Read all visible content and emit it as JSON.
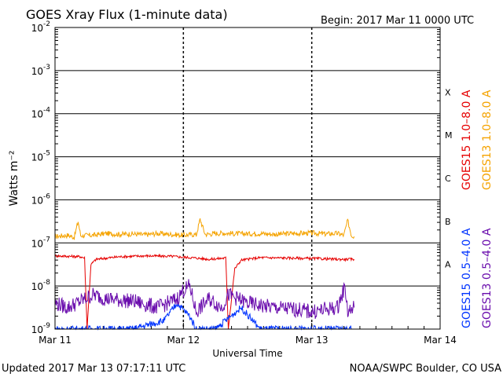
{
  "header": {
    "title": "GOES Xray Flux (1-minute data)",
    "begin_label": "Begin:  2017 Mar 11 0000 UTC"
  },
  "footer": {
    "updated": "Updated 2017 Mar 13 07:17:11 UTC",
    "credit": "NOAA/SWPC Boulder, CO USA"
  },
  "colors": {
    "goes15_long": "#e60000",
    "goes13_long": "#f5a300",
    "goes15_short": "#0033ff",
    "goes13_short": "#6a0dad"
  },
  "chart_data": {
    "type": "line",
    "title": "GOES Xray Flux (1-minute data)",
    "xlabel": "Universal Time",
    "ylabel": "Watts m⁻²",
    "y_scale": "log",
    "ylim": [
      1e-09,
      0.01
    ],
    "xlim": [
      0,
      3
    ],
    "x_ticks": [
      {
        "value": 0,
        "label": "Mar 11"
      },
      {
        "value": 1,
        "label": "Mar 12"
      },
      {
        "value": 2,
        "label": "Mar 13"
      },
      {
        "value": 3,
        "label": "Mar 14"
      }
    ],
    "y_ticks": [
      {
        "value": -9,
        "base": "10",
        "exp": "-9"
      },
      {
        "value": -8,
        "base": "10",
        "exp": "-8"
      },
      {
        "value": -7,
        "base": "10",
        "exp": "-7"
      },
      {
        "value": -6,
        "base": "10",
        "exp": "-6"
      },
      {
        "value": -5,
        "base": "10",
        "exp": "-5"
      },
      {
        "value": -4,
        "base": "10",
        "exp": "-4"
      },
      {
        "value": -3,
        "base": "10",
        "exp": "-3"
      },
      {
        "value": -2,
        "base": "10",
        "exp": "-2"
      }
    ],
    "flare_classes": [
      {
        "label": "X",
        "exponent": -3.5
      },
      {
        "label": "M",
        "exponent": -4.5
      },
      {
        "label": "C",
        "exponent": -5.5
      },
      {
        "label": "B",
        "exponent": -6.5
      },
      {
        "label": "A",
        "exponent": -7.5
      }
    ],
    "legend_right": [
      {
        "label": "GOES15 1.0–8.0 A",
        "series": "goes15_long"
      },
      {
        "label": "GOES13 1.0–8.0 A",
        "series": "goes13_long"
      }
    ],
    "legend_left": [
      {
        "label": "GOES15 0.5–4.0 A",
        "series": "goes15_short"
      },
      {
        "label": "GOES13 0.5–4.0 A",
        "series": "goes13_short"
      }
    ],
    "series": [
      {
        "id": "goes13_long",
        "color": "#f5a300",
        "points": [
          [
            0.0,
            -6.85
          ],
          [
            0.1,
            -6.82
          ],
          [
            0.15,
            -6.87
          ],
          [
            0.18,
            -6.5
          ],
          [
            0.2,
            -6.83
          ],
          [
            0.3,
            -6.82
          ],
          [
            0.4,
            -6.78
          ],
          [
            0.5,
            -6.8
          ],
          [
            0.6,
            -6.79
          ],
          [
            0.7,
            -6.81
          ],
          [
            0.8,
            -6.78
          ],
          [
            0.9,
            -6.8
          ],
          [
            1.0,
            -6.82
          ],
          [
            1.08,
            -6.8
          ],
          [
            1.1,
            -6.82
          ],
          [
            1.13,
            -6.45
          ],
          [
            1.17,
            -6.8
          ],
          [
            1.3,
            -6.77
          ],
          [
            1.45,
            -6.79
          ],
          [
            1.6,
            -6.78
          ],
          [
            1.72,
            -6.8
          ],
          [
            1.85,
            -6.78
          ],
          [
            2.0,
            -6.77
          ],
          [
            2.1,
            -6.79
          ],
          [
            2.2,
            -6.78
          ],
          [
            2.25,
            -6.82
          ],
          [
            2.28,
            -6.48
          ],
          [
            2.31,
            -6.83
          ],
          [
            2.33,
            -6.85
          ]
        ]
      },
      {
        "id": "goes15_long",
        "color": "#e60000",
        "points": [
          [
            0.0,
            -7.3
          ],
          [
            0.1,
            -7.31
          ],
          [
            0.2,
            -7.32
          ],
          [
            0.23,
            -7.35
          ],
          [
            0.25,
            -8.98
          ],
          [
            0.28,
            -7.5
          ],
          [
            0.32,
            -7.38
          ],
          [
            0.5,
            -7.32
          ],
          [
            0.7,
            -7.3
          ],
          [
            0.9,
            -7.31
          ],
          [
            1.0,
            -7.33
          ],
          [
            1.1,
            -7.35
          ],
          [
            1.2,
            -7.38
          ],
          [
            1.33,
            -7.35
          ],
          [
            1.35,
            -8.99
          ],
          [
            1.4,
            -7.6
          ],
          [
            1.45,
            -7.4
          ],
          [
            1.6,
            -7.34
          ],
          [
            1.8,
            -7.35
          ],
          [
            2.0,
            -7.36
          ],
          [
            2.2,
            -7.38
          ],
          [
            2.33,
            -7.38
          ]
        ]
      },
      {
        "id": "goes13_short",
        "color": "#6a0dad",
        "points": [
          [
            0.0,
            -8.4
          ],
          [
            0.1,
            -8.5
          ],
          [
            0.3,
            -8.2
          ],
          [
            0.4,
            -8.3
          ],
          [
            0.6,
            -8.35
          ],
          [
            0.8,
            -8.5
          ],
          [
            0.95,
            -8.3
          ],
          [
            1.0,
            -8.1
          ],
          [
            1.05,
            -8.0
          ],
          [
            1.1,
            -8.6
          ],
          [
            1.2,
            -8.3
          ],
          [
            1.3,
            -8.5
          ],
          [
            1.35,
            -8.2
          ],
          [
            1.5,
            -8.4
          ],
          [
            1.7,
            -8.5
          ],
          [
            1.9,
            -8.55
          ],
          [
            2.0,
            -8.6
          ],
          [
            2.1,
            -8.55
          ],
          [
            2.2,
            -8.5
          ],
          [
            2.26,
            -8.0
          ],
          [
            2.28,
            -8.6
          ],
          [
            2.33,
            -8.5
          ]
        ]
      },
      {
        "id": "goes15_short",
        "color": "#0033ff",
        "points": [
          [
            0.0,
            -9.0
          ],
          [
            0.1,
            -9.0
          ],
          [
            0.2,
            -9.0
          ],
          [
            0.4,
            -9.0
          ],
          [
            0.6,
            -9.0
          ],
          [
            0.85,
            -8.8
          ],
          [
            0.95,
            -8.4
          ],
          [
            1.05,
            -8.7
          ],
          [
            1.1,
            -9.0
          ],
          [
            1.25,
            -9.0
          ],
          [
            1.45,
            -8.5
          ],
          [
            1.6,
            -9.0
          ],
          [
            1.8,
            -9.0
          ],
          [
            2.0,
            -9.0
          ],
          [
            2.2,
            -9.0
          ],
          [
            2.33,
            -9.0
          ]
        ]
      }
    ]
  }
}
